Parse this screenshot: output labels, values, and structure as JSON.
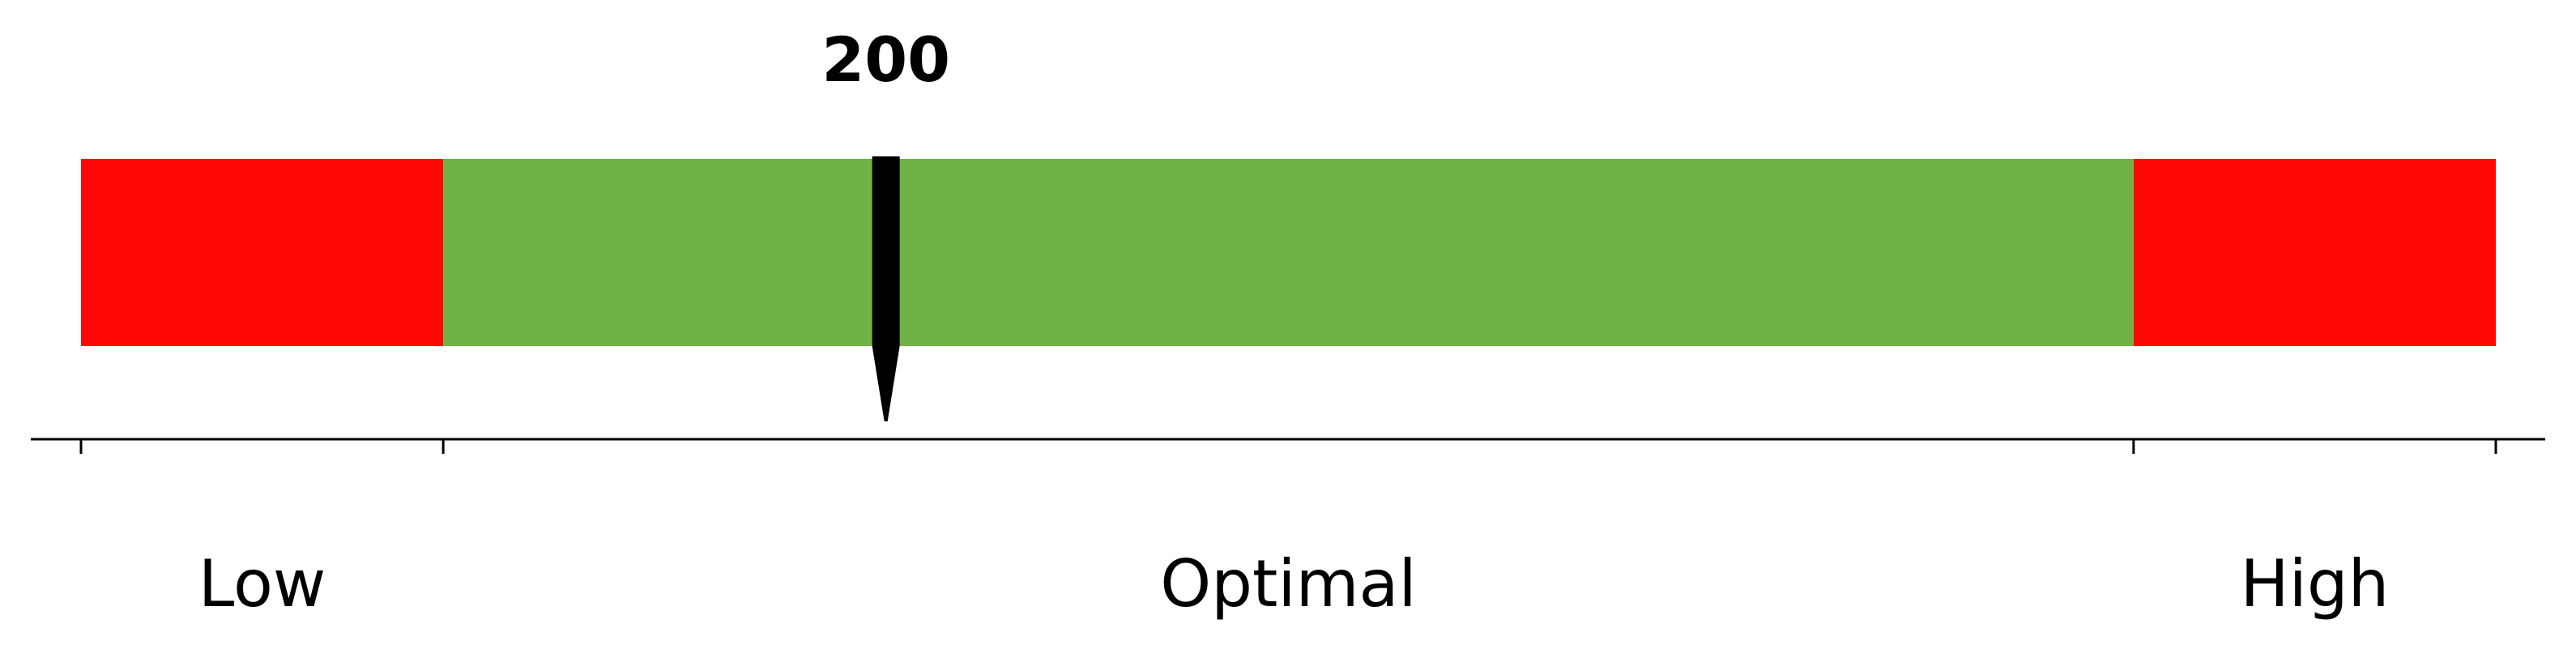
{
  "chart_data": {
    "type": "bar",
    "value": 200,
    "value_label": "200",
    "zones": [
      {
        "label": "Low",
        "start": 0,
        "end": 90,
        "color": "#ff0707"
      },
      {
        "label": "Optimal",
        "start": 90,
        "end": 510,
        "color": "#71b246"
      },
      {
        "label": "High",
        "start": 510,
        "end": 600,
        "color": "#ff0707"
      }
    ],
    "xlim": [
      0,
      600
    ],
    "ticks": [
      0,
      90,
      510,
      600
    ],
    "grid": false,
    "pointer_color": "#000000"
  }
}
